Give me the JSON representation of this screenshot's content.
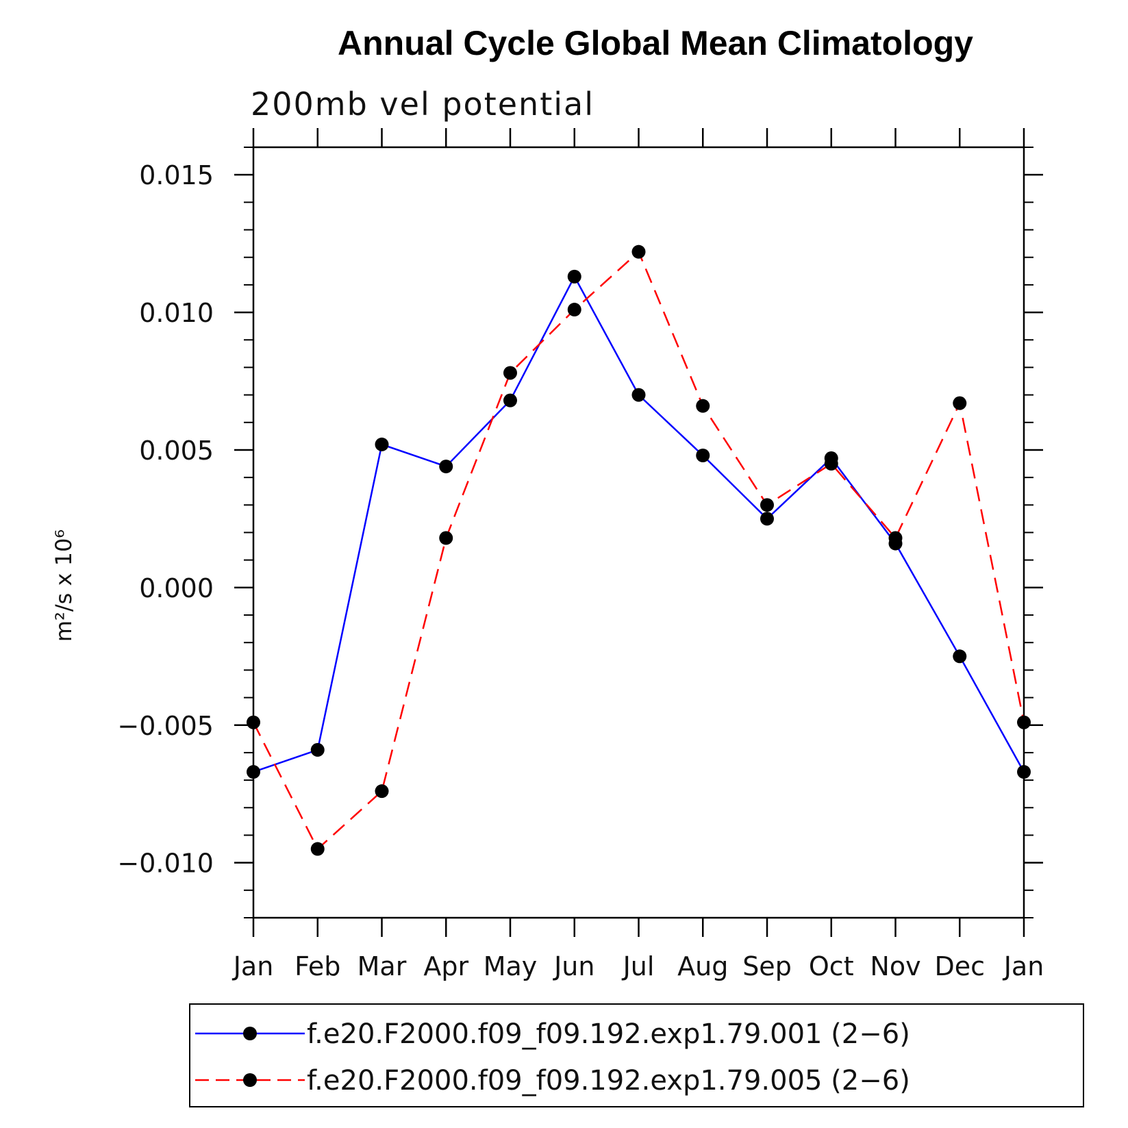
{
  "chart_data": {
    "type": "line",
    "title": "Annual Cycle Global Mean Climatology",
    "subtitle": "200mb vel potential",
    "ylabel": "m²/s x 10⁶",
    "xlabel": "",
    "categories": [
      "Jan",
      "Feb",
      "Mar",
      "Apr",
      "May",
      "Jun",
      "Jul",
      "Aug",
      "Sep",
      "Oct",
      "Nov",
      "Dec",
      "Jan"
    ],
    "ylim": [
      -0.012,
      0.016
    ],
    "yticks": [
      -0.01,
      -0.005,
      0.0,
      0.005,
      0.01,
      0.015
    ],
    "ytick_labels": [
      "−0.010",
      "−0.005",
      "0.000",
      "0.005",
      "0.010",
      "0.015"
    ],
    "series": [
      {
        "name": "f.e20.F2000.f09_f09.192.exp1.79.001 (2−6)",
        "color": "#0000ff",
        "style": "solid",
        "marker_color": "#000000",
        "values": [
          -0.0067,
          -0.0059,
          0.0052,
          0.0044,
          0.0068,
          0.0113,
          0.007,
          0.0048,
          0.0025,
          0.0047,
          0.0016,
          -0.0025,
          -0.0067
        ]
      },
      {
        "name": "f.e20.F2000.f09_f09.192.exp1.79.005 (2−6)",
        "color": "#ff0000",
        "style": "dashed",
        "marker_color": "#000000",
        "values": [
          -0.0049,
          -0.0095,
          -0.0074,
          0.0018,
          0.0078,
          0.0101,
          0.0122,
          0.0066,
          0.003,
          0.0045,
          0.0018,
          0.0067,
          -0.0049
        ]
      }
    ],
    "legend_position": "bottom"
  }
}
